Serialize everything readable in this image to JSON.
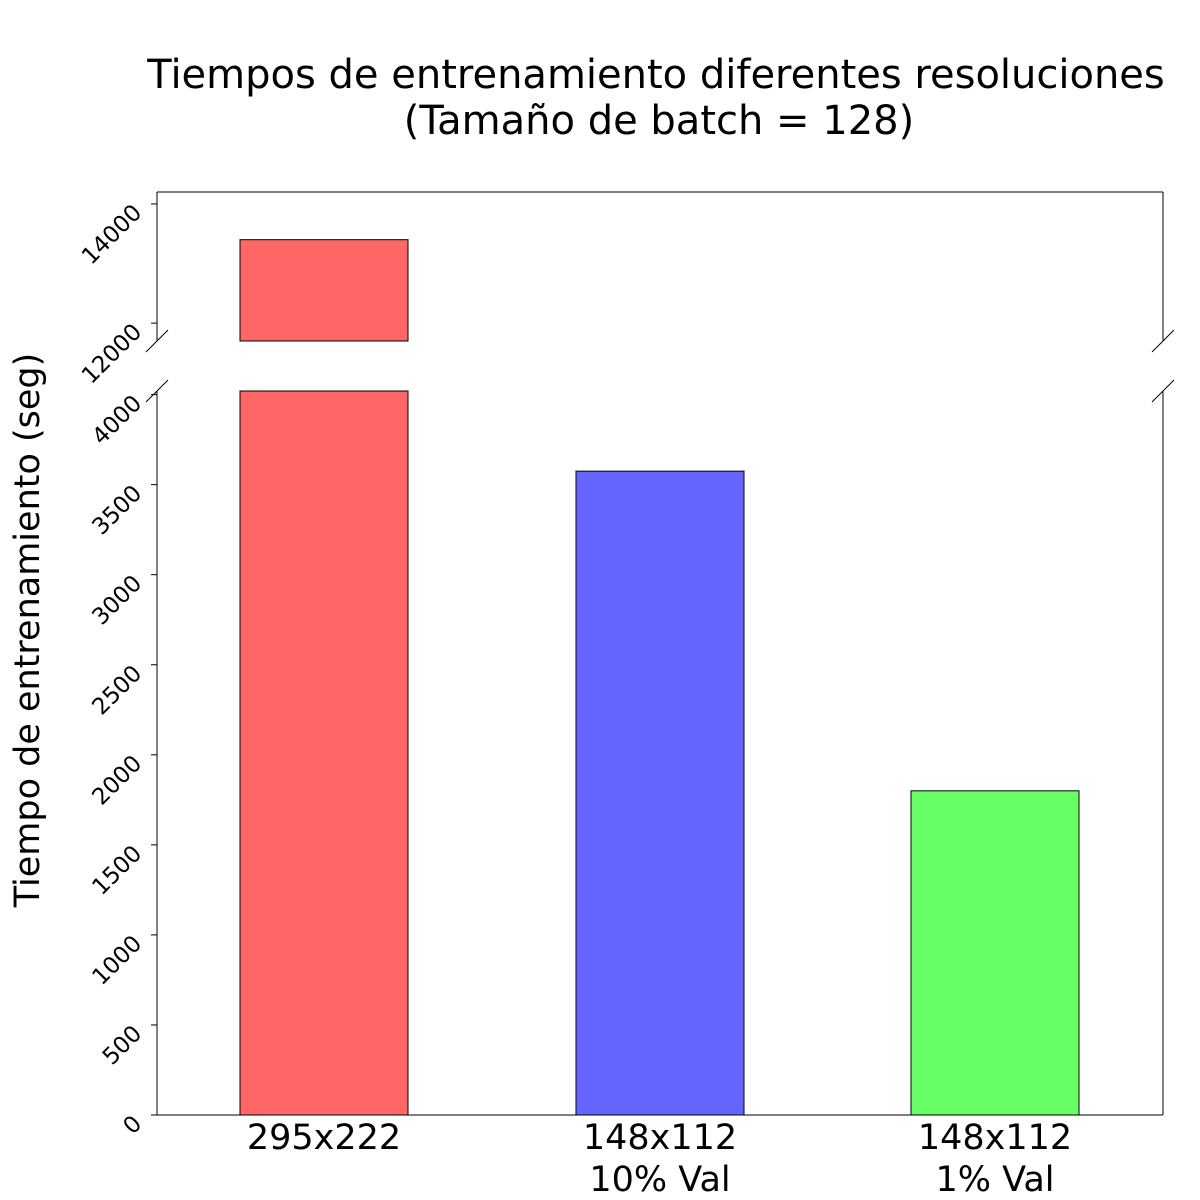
{
  "chart_data": {
    "type": "bar",
    "title_lines": [
      "Tiempos de entrenamiento diferentes resoluciones",
      "(Tamaño de batch = 128)"
    ],
    "ylabel": "Tiempo de entrenamiento (seg)",
    "xlabel": "",
    "categories": [
      [
        "295x222"
      ],
      [
        "148x112",
        "10% Val"
      ],
      [
        "148x112",
        "1% Val"
      ]
    ],
    "values": [
      13400,
      3575,
      1800
    ],
    "colors": [
      "#ff6666",
      "#6666ff",
      "#66ff66"
    ],
    "broken_axis": true,
    "segments": {
      "upper": {
        "ylim": [
          11700,
          14200
        ],
        "ticks": [
          "12000",
          "14000"
        ]
      },
      "lower": {
        "ylim": [
          0,
          4020
        ],
        "ticks": [
          "0",
          "500",
          "1000",
          "1500",
          "2000",
          "2500",
          "3000",
          "3500",
          "4000"
        ]
      }
    },
    "grid": false,
    "legend": "none"
  }
}
